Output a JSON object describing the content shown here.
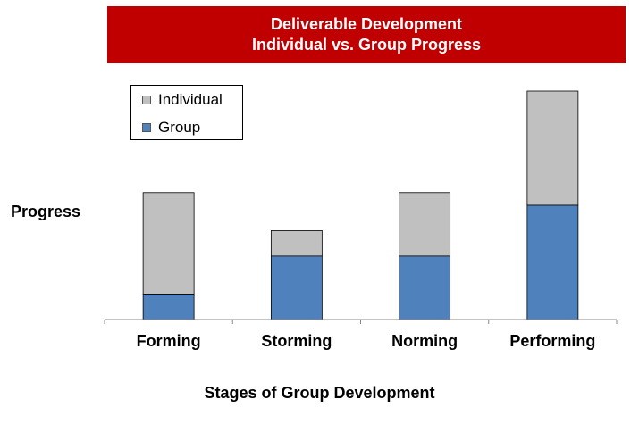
{
  "chart_data": {
    "type": "bar",
    "stacked": true,
    "title_lines": [
      "Deliverable Development",
      "Individual vs. Group Progress"
    ],
    "xlabel": "Stages of Group Development",
    "ylabel": "Progress",
    "categories": [
      "Forming",
      "Storming",
      "Norming",
      "Performing"
    ],
    "series": [
      {
        "name": "Group",
        "values": [
          2,
          5,
          5,
          9
        ],
        "color": "#4f81bd"
      },
      {
        "name": "Individual",
        "values": [
          8,
          2,
          5,
          9
        ],
        "color": "#c0c0c0"
      }
    ],
    "ylim": [
      0,
      18
    ],
    "grid": false,
    "legend_position": "top-left",
    "legend_order": [
      "Individual",
      "Group"
    ]
  }
}
